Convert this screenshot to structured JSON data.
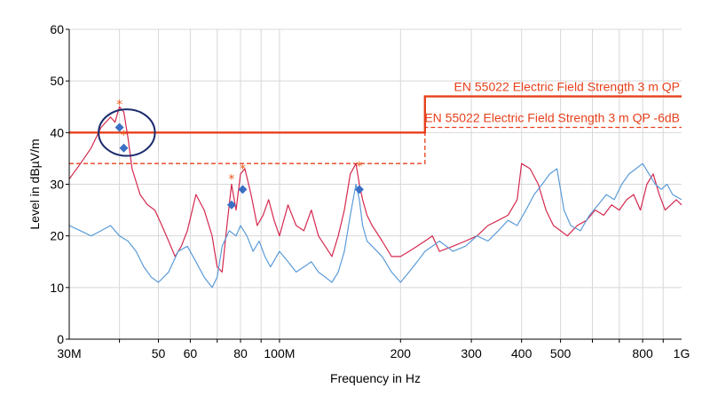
{
  "chart_data": {
    "type": "line",
    "title": "",
    "xlabel": "Frequency in Hz",
    "ylabel": "Level in dBµV/m",
    "x_scale": "log",
    "xlim": [
      30000000,
      1000000000
    ],
    "ylim": [
      0,
      60
    ],
    "grid": true,
    "x_ticks": [
      {
        "value": 30000000,
        "label": "30M"
      },
      {
        "value": 50000000,
        "label": "50"
      },
      {
        "value": 60000000,
        "label": "60"
      },
      {
        "value": 80000000,
        "label": "80"
      },
      {
        "value": 100000000,
        "label": "100M"
      },
      {
        "value": 200000000,
        "label": "200"
      },
      {
        "value": 300000000,
        "label": "300"
      },
      {
        "value": 400000000,
        "label": "400"
      },
      {
        "value": 500000000,
        "label": "500"
      },
      {
        "value": 800000000,
        "label": "800"
      },
      {
        "value": 1000000000,
        "label": "1G"
      }
    ],
    "y_ticks": [
      0,
      10,
      20,
      30,
      40,
      50,
      60
    ],
    "colors": {
      "limit": "#e8401c",
      "red_trace": "#d4284e",
      "blue_trace": "#5b9bd8",
      "qp_marker": "#3a6fc4",
      "peak_star": "#e85a1c",
      "ellipse": "#1a2a6c",
      "grid": "#d8d8d8"
    },
    "limit_lines": [
      {
        "name": "EN 55022 Electric Field Strength 3 m QP",
        "style": "solid",
        "points": [
          [
            30000000,
            40
          ],
          [
            230000000,
            40
          ],
          [
            230000000,
            47
          ],
          [
            1000000000,
            47
          ]
        ]
      },
      {
        "name": "EN 55022 Electric Field Strength 3 m QP -6dB",
        "style": "dashed",
        "points": [
          [
            30000000,
            34
          ],
          [
            230000000,
            34
          ],
          [
            230000000,
            41
          ],
          [
            1000000000,
            41
          ]
        ]
      }
    ],
    "series": [
      {
        "color_key": "red_trace",
        "x": [
          30000000,
          32000000,
          34000000,
          36000000,
          38000000,
          39000000,
          40000000,
          41000000,
          42000000,
          43000000,
          45000000,
          47000000,
          49000000,
          51000000,
          53000000,
          55000000,
          57000000,
          59000000,
          62000000,
          65000000,
          68000000,
          70000000,
          72000000,
          74000000,
          76000000,
          78000000,
          80000000,
          82000000,
          85000000,
          88000000,
          91000000,
          94000000,
          97000000,
          100000000,
          105000000,
          110000000,
          115000000,
          120000000,
          125000000,
          130000000,
          135000000,
          140000000,
          145000000,
          150000000,
          155000000,
          158000000,
          161000000,
          165000000,
          170000000,
          180000000,
          190000000,
          200000000,
          210000000,
          220000000,
          230000000,
          240000000,
          250000000,
          270000000,
          290000000,
          310000000,
          330000000,
          350000000,
          370000000,
          390000000,
          400000000,
          420000000,
          440000000,
          460000000,
          480000000,
          500000000,
          520000000,
          550000000,
          580000000,
          610000000,
          640000000,
          670000000,
          700000000,
          730000000,
          760000000,
          790000000,
          820000000,
          850000000,
          880000000,
          910000000,
          940000000,
          970000000,
          1000000000
        ],
        "y": [
          31,
          34,
          37,
          41,
          43,
          42,
          45,
          44,
          39,
          33,
          28,
          26,
          25,
          22,
          19,
          16,
          18,
          21,
          28,
          25,
          20,
          14,
          13,
          22,
          30,
          25,
          32,
          33,
          28,
          22,
          24,
          27,
          23,
          20,
          26,
          22,
          21,
          25,
          20,
          18,
          16,
          20,
          25,
          32,
          34,
          30,
          27,
          24,
          22,
          19,
          16,
          16,
          17,
          18,
          19,
          20,
          17,
          18,
          19,
          20,
          22,
          23,
          24,
          27,
          34,
          33,
          30,
          25,
          22,
          21,
          20,
          22,
          23,
          25,
          24,
          26,
          25,
          27,
          28,
          25,
          30,
          32,
          28,
          25,
          26,
          27,
          26
        ]
      },
      {
        "color_key": "blue_trace",
        "x": [
          30000000,
          32000000,
          34000000,
          36000000,
          38000000,
          40000000,
          42000000,
          44000000,
          46000000,
          48000000,
          50000000,
          53000000,
          56000000,
          59000000,
          62000000,
          65000000,
          68000000,
          70000000,
          72000000,
          75000000,
          78000000,
          80000000,
          83000000,
          86000000,
          89000000,
          92000000,
          95000000,
          100000000,
          105000000,
          110000000,
          115000000,
          120000000,
          125000000,
          130000000,
          135000000,
          140000000,
          145000000,
          150000000,
          155000000,
          158000000,
          161000000,
          165000000,
          170000000,
          180000000,
          190000000,
          200000000,
          210000000,
          220000000,
          230000000,
          240000000,
          250000000,
          270000000,
          290000000,
          310000000,
          330000000,
          350000000,
          370000000,
          390000000,
          410000000,
          430000000,
          450000000,
          470000000,
          490000000,
          510000000,
          530000000,
          560000000,
          590000000,
          620000000,
          650000000,
          680000000,
          710000000,
          740000000,
          770000000,
          800000000,
          830000000,
          860000000,
          890000000,
          920000000,
          950000000,
          1000000000
        ],
        "y": [
          22,
          21,
          20,
          21,
          22,
          20,
          19,
          17,
          14,
          12,
          11,
          13,
          17,
          18,
          15,
          12,
          10,
          12,
          18,
          21,
          20,
          22,
          20,
          17,
          19,
          16,
          14,
          17,
          15,
          13,
          14,
          15,
          13,
          12,
          11,
          13,
          17,
          24,
          30,
          27,
          22,
          19,
          18,
          16,
          13,
          11,
          13,
          15,
          17,
          18,
          19,
          17,
          18,
          20,
          19,
          21,
          23,
          22,
          25,
          28,
          30,
          32,
          33,
          25,
          22,
          21,
          24,
          26,
          28,
          27,
          30,
          32,
          33,
          34,
          32,
          30,
          29,
          30,
          28,
          27
        ]
      }
    ],
    "peak_stars": [
      {
        "x": 40000000,
        "y": 45.5
      },
      {
        "x": 41000000,
        "y": 39.5
      },
      {
        "x": 76000000,
        "y": 31
      },
      {
        "x": 81000000,
        "y": 33
      },
      {
        "x": 158000000,
        "y": 33.5
      }
    ],
    "qp_markers": [
      {
        "x": 40000000,
        "y": 41
      },
      {
        "x": 41000000,
        "y": 37
      },
      {
        "x": 76000000,
        "y": 26
      },
      {
        "x": 81000000,
        "y": 29
      },
      {
        "x": 158000000,
        "y": 29
      }
    ],
    "highlight_ellipse": {
      "x_center": 41500000,
      "y_center": 40,
      "x_span": [
        35500000,
        49000000
      ],
      "y_span": [
        35.5,
        44.5
      ]
    }
  }
}
